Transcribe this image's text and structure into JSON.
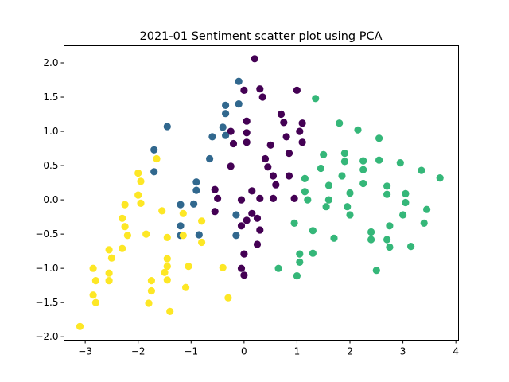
{
  "chart_data": {
    "type": "scatter",
    "title": "2021-01 Sentiment scatter plot using PCA",
    "xlabel": "",
    "ylabel": "",
    "xlim": [
      -3.4,
      4.05
    ],
    "ylim": [
      -2.05,
      2.25
    ],
    "x_ticks": [
      {
        "value": -3,
        "label": "−3"
      },
      {
        "value": -2,
        "label": "−2"
      },
      {
        "value": -1,
        "label": "−1"
      },
      {
        "value": 0,
        "label": "0"
      },
      {
        "value": 1,
        "label": "1"
      },
      {
        "value": 2,
        "label": "2"
      },
      {
        "value": 3,
        "label": "3"
      },
      {
        "value": 4,
        "label": "4"
      }
    ],
    "y_ticks": [
      {
        "value": -2.0,
        "label": "−2.0"
      },
      {
        "value": -1.5,
        "label": "−1.5"
      },
      {
        "value": -1.0,
        "label": "−1.0"
      },
      {
        "value": -0.5,
        "label": "−0.5"
      },
      {
        "value": 0.0,
        "label": "0.0"
      },
      {
        "value": 0.5,
        "label": "0.5"
      },
      {
        "value": 1.0,
        "label": "1.0"
      },
      {
        "value": 1.5,
        "label": "1.5"
      },
      {
        "value": 2.0,
        "label": "2.0"
      }
    ],
    "grid": false,
    "legend": "none",
    "series": [
      {
        "color": "#440154",
        "points": [
          [
            0.2,
            2.06
          ],
          [
            0.3,
            1.62
          ],
          [
            0.35,
            1.5
          ],
          [
            0.0,
            1.6
          ],
          [
            1.0,
            1.6
          ],
          [
            0.7,
            1.25
          ],
          [
            0.75,
            1.13
          ],
          [
            1.1,
            1.12
          ],
          [
            1.05,
            1.0
          ],
          [
            0.05,
            1.15
          ],
          [
            -0.25,
            1.0
          ],
          [
            0.05,
            0.98
          ],
          [
            -0.2,
            0.82
          ],
          [
            0.05,
            0.84
          ],
          [
            0.5,
            0.8
          ],
          [
            0.8,
            0.92
          ],
          [
            1.1,
            0.84
          ],
          [
            0.85,
            0.68
          ],
          [
            0.4,
            0.6
          ],
          [
            0.45,
            0.48
          ],
          [
            0.55,
            0.35
          ],
          [
            0.85,
            0.35
          ],
          [
            0.6,
            0.22
          ],
          [
            -0.25,
            0.49
          ],
          [
            0.15,
            0.13
          ],
          [
            0.55,
            0.02
          ],
          [
            0.95,
            0.02
          ],
          [
            -0.55,
            0.15
          ],
          [
            -0.5,
            0.02
          ],
          [
            -0.05,
            0.0
          ],
          [
            0.3,
            0.02
          ],
          [
            -0.55,
            -0.17
          ],
          [
            0.15,
            -0.2
          ],
          [
            0.25,
            -0.27
          ],
          [
            0.3,
            -0.44
          ],
          [
            0.25,
            -0.65
          ],
          [
            0.0,
            -0.79
          ],
          [
            -0.05,
            -1.0
          ],
          [
            0.0,
            -1.1
          ],
          [
            -0.05,
            -0.38
          ],
          [
            0.05,
            -0.3
          ]
        ]
      },
      {
        "color": "#31688e",
        "points": [
          [
            -0.1,
            1.73
          ],
          [
            -0.35,
            1.38
          ],
          [
            -0.1,
            1.4
          ],
          [
            -0.35,
            1.26
          ],
          [
            -1.45,
            1.07
          ],
          [
            -0.4,
            1.06
          ],
          [
            -0.35,
            0.94
          ],
          [
            -0.6,
            0.92
          ],
          [
            -1.7,
            0.73
          ],
          [
            -0.65,
            0.6
          ],
          [
            -1.7,
            0.41
          ],
          [
            -0.9,
            0.26
          ],
          [
            -0.9,
            0.14
          ],
          [
            -1.2,
            -0.07
          ],
          [
            -0.95,
            -0.06
          ],
          [
            -0.15,
            -0.22
          ],
          [
            -1.2,
            -0.38
          ],
          [
            -0.85,
            -0.51
          ],
          [
            -0.15,
            -0.52
          ],
          [
            -1.2,
            -0.52
          ]
        ]
      },
      {
        "color": "#35b779",
        "points": [
          [
            1.35,
            1.48
          ],
          [
            1.8,
            1.12
          ],
          [
            2.15,
            1.02
          ],
          [
            2.55,
            0.9
          ],
          [
            1.9,
            0.68
          ],
          [
            2.55,
            0.58
          ],
          [
            1.5,
            0.66
          ],
          [
            1.9,
            0.56
          ],
          [
            2.25,
            0.57
          ],
          [
            2.95,
            0.54
          ],
          [
            1.45,
            0.46
          ],
          [
            2.25,
            0.44
          ],
          [
            3.35,
            0.43
          ],
          [
            3.7,
            0.32
          ],
          [
            1.15,
            0.31
          ],
          [
            1.85,
            0.35
          ],
          [
            2.25,
            0.24
          ],
          [
            1.15,
            0.12
          ],
          [
            1.6,
            0.21
          ],
          [
            2.7,
            0.2
          ],
          [
            2.0,
            0.1
          ],
          [
            2.7,
            0.08
          ],
          [
            3.05,
            0.09
          ],
          [
            1.6,
            0.0
          ],
          [
            1.2,
            0.0
          ],
          [
            3.05,
            -0.04
          ],
          [
            1.55,
            -0.1
          ],
          [
            1.95,
            -0.1
          ],
          [
            3.45,
            -0.14
          ],
          [
            2.0,
            -0.22
          ],
          [
            3.0,
            -0.22
          ],
          [
            0.95,
            -0.34
          ],
          [
            3.4,
            -0.34
          ],
          [
            2.75,
            -0.38
          ],
          [
            2.4,
            -0.47
          ],
          [
            1.3,
            -0.45
          ],
          [
            2.4,
            -0.58
          ],
          [
            1.7,
            -0.56
          ],
          [
            2.7,
            -0.58
          ],
          [
            2.75,
            -0.69
          ],
          [
            3.15,
            -0.68
          ],
          [
            1.05,
            -0.79
          ],
          [
            1.3,
            -0.78
          ],
          [
            1.05,
            -0.91
          ],
          [
            0.65,
            -1.0
          ],
          [
            2.5,
            -1.03
          ],
          [
            1.0,
            -1.11
          ]
        ]
      },
      {
        "color": "#fde725",
        "points": [
          [
            -1.65,
            0.6
          ],
          [
            -2.0,
            0.39
          ],
          [
            -1.95,
            0.27
          ],
          [
            -2.0,
            0.07
          ],
          [
            -2.25,
            -0.07
          ],
          [
            -1.95,
            -0.05
          ],
          [
            -1.55,
            -0.16
          ],
          [
            -1.15,
            -0.2
          ],
          [
            -2.3,
            -0.27
          ],
          [
            -2.25,
            -0.39
          ],
          [
            -0.8,
            -0.31
          ],
          [
            -2.2,
            -0.52
          ],
          [
            -1.85,
            -0.5
          ],
          [
            -1.45,
            -0.55
          ],
          [
            -1.15,
            -0.52
          ],
          [
            -0.8,
            -0.62
          ],
          [
            -2.55,
            -0.73
          ],
          [
            -2.3,
            -0.71
          ],
          [
            -1.45,
            -0.86
          ],
          [
            -2.5,
            -0.85
          ],
          [
            -1.45,
            -0.97
          ],
          [
            -1.05,
            -0.97
          ],
          [
            -0.4,
            -0.99
          ],
          [
            -2.85,
            -1.0
          ],
          [
            -2.55,
            -1.07
          ],
          [
            -1.5,
            -1.06
          ],
          [
            -2.8,
            -1.18
          ],
          [
            -2.55,
            -1.18
          ],
          [
            -1.75,
            -1.18
          ],
          [
            -1.45,
            -1.17
          ],
          [
            -1.1,
            -1.28
          ],
          [
            -1.75,
            -1.33
          ],
          [
            -2.85,
            -1.39
          ],
          [
            -0.3,
            -1.43
          ],
          [
            -2.8,
            -1.5
          ],
          [
            -1.8,
            -1.51
          ],
          [
            -1.4,
            -1.63
          ],
          [
            -3.1,
            -1.85
          ]
        ]
      }
    ]
  }
}
